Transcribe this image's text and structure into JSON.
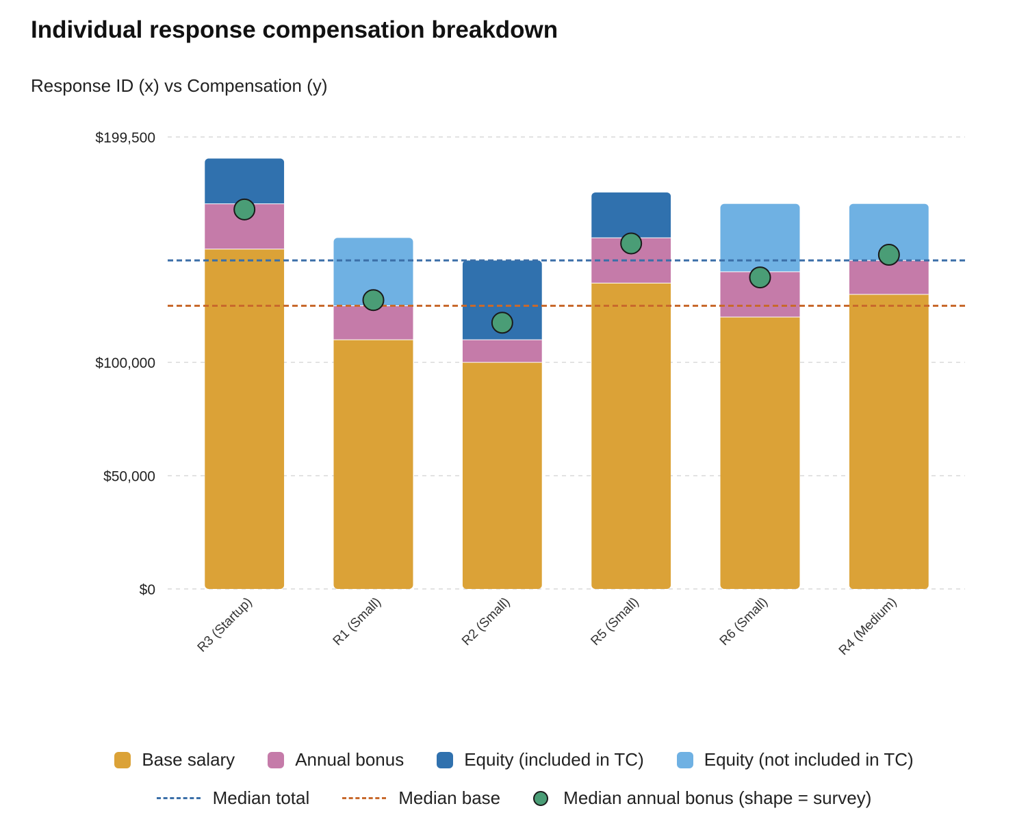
{
  "title": "Individual response compensation breakdown",
  "subtitle": "Response ID (x) vs Compensation (y)",
  "colors": {
    "base": "#DBA237",
    "bonus": "#C57BA9",
    "equity_in": "#3071AE",
    "equity_out": "#6FB1E3",
    "median_total": "#3B6FA8",
    "median_base": "#C8692C",
    "marker": "#4A9D76"
  },
  "legend": {
    "base": "Base salary",
    "bonus": "Annual bonus",
    "equity_in": "Equity (included in TC)",
    "equity_out": "Equity (not included in TC)",
    "median_total": "Median total",
    "median_base": "Median base",
    "marker": "Median annual bonus (shape = survey)"
  },
  "chart_data": {
    "type": "bar",
    "stacked": true,
    "title": "Individual response compensation breakdown",
    "subtitle": "Response ID (x) vs Compensation (y)",
    "categories": [
      "R3 (Startup)",
      "R1 (Small)",
      "R2 (Small)",
      "R5 (Small)",
      "R6 (Small)",
      "R4 (Medium)"
    ],
    "series": [
      {
        "name": "Base salary",
        "key": "base",
        "values": [
          150000,
          110000,
          100000,
          135000,
          120000,
          130000
        ]
      },
      {
        "name": "Annual bonus",
        "key": "bonus",
        "values": [
          20000,
          15000,
          10000,
          20000,
          20000,
          15000
        ]
      },
      {
        "name": "Equity (included in TC)",
        "key": "equity_in",
        "values": [
          20000,
          0,
          35000,
          20000,
          0,
          0
        ]
      },
      {
        "name": "Equity (not included in TC)",
        "key": "equity_out",
        "values": [
          0,
          30000,
          0,
          0,
          30000,
          25000
        ]
      }
    ],
    "markers": {
      "name": "Median annual bonus (shape = survey)",
      "values": [
        167500,
        127500,
        117500,
        152500,
        137500,
        147500
      ]
    },
    "reference_lines": [
      {
        "name": "Median total",
        "key": "median_total",
        "value": 145000
      },
      {
        "name": "Median base",
        "key": "median_base",
        "value": 125000
      }
    ],
    "y_ticks": [
      {
        "value": 0,
        "label": "$0"
      },
      {
        "value": 50000,
        "label": "$50,000"
      },
      {
        "value": 100000,
        "label": "$100,000"
      },
      {
        "value": 199500,
        "label": "$199,500"
      }
    ],
    "ylim": [
      0,
      199500
    ],
    "grid": true,
    "legend_position": "bottom"
  }
}
